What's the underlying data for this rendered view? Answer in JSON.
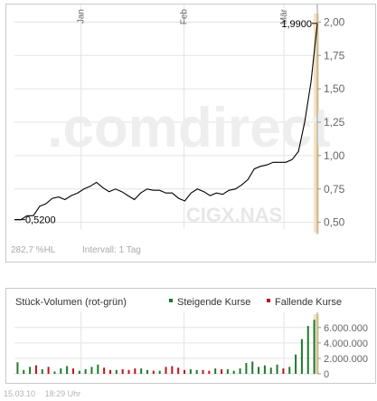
{
  "watermark": {
    "brand": ".comdirect",
    "symbol": "CIGX.NAS"
  },
  "price_footer": {
    "change": "282,7 %HL",
    "interval": "Intervall: 1 Tag"
  },
  "volume_header": {
    "title": "Stück-Volumen (rot-grün)",
    "rising": "Steigende Kurse",
    "falling": "Fallende Kurse"
  },
  "bottom": {
    "date": "15.03.10",
    "time": "18:29 Uhr"
  },
  "colors": {
    "line": "#000000",
    "grid": "#e3e3e3",
    "highlight": "#f8e2b8",
    "rising": "#1e7a2e",
    "falling": "#c0121b",
    "muted": "#aaaaaa"
  },
  "chart_data": [
    {
      "type": "line",
      "title": "",
      "x_labels": [
        "Jan",
        "Feb",
        "Mär"
      ],
      "ylim": [
        0.45,
        2.05
      ],
      "y_ticks": [
        "0,50",
        "0,75",
        "1,00",
        "1,25",
        "1,50",
        "1,75",
        "2,00"
      ],
      "y_tick_values": [
        0.5,
        0.75,
        1.0,
        1.25,
        1.5,
        1.75,
        2.0
      ],
      "annotations": [
        {
          "label": "0,5200",
          "index": 0,
          "value": 0.52
        },
        {
          "label": "1,9900",
          "index": 48,
          "value": 1.99
        }
      ],
      "series": [
        {
          "values": [
            0.52,
            0.52,
            0.55,
            0.55,
            0.62,
            0.64,
            0.68,
            0.69,
            0.67,
            0.7,
            0.72,
            0.75,
            0.77,
            0.8,
            0.76,
            0.73,
            0.75,
            0.73,
            0.7,
            0.67,
            0.72,
            0.75,
            0.74,
            0.74,
            0.72,
            0.72,
            0.68,
            0.66,
            0.72,
            0.75,
            0.73,
            0.7,
            0.72,
            0.71,
            0.74,
            0.75,
            0.78,
            0.82,
            0.9,
            0.92,
            0.93,
            0.95,
            0.95,
            0.95,
            0.97,
            1.03,
            1.25,
            1.55,
            1.99
          ]
        }
      ],
      "grid": true
    },
    {
      "type": "bar",
      "title": "Stück-Volumen (rot-grün)",
      "ylim": [
        0,
        7500000
      ],
      "y_ticks": [
        "0",
        "2.000.000",
        "4.000.000",
        "6.000.000"
      ],
      "y_tick_values": [
        0,
        2000000,
        4000000,
        6000000
      ],
      "series": [
        {
          "name": "Steigende Kurse",
          "values": [
            1500000,
            500000,
            900000,
            0,
            600000,
            0,
            300000,
            700000,
            1000000,
            0,
            400000,
            600000,
            900000,
            1200000,
            0,
            0,
            500000,
            0,
            0,
            0,
            700000,
            500000,
            0,
            400000,
            0,
            0,
            0,
            0,
            600000,
            500000,
            0,
            0,
            700000,
            0,
            600000,
            400000,
            700000,
            1400000,
            1600000,
            900000,
            1100000,
            800000,
            1200000,
            0,
            900000,
            2500000,
            4500000,
            6200000,
            7000000
          ]
        },
        {
          "name": "Fallende Kurse",
          "values": [
            0,
            0,
            0,
            1100000,
            0,
            900000,
            0,
            0,
            0,
            700000,
            0,
            0,
            0,
            0,
            800000,
            500000,
            0,
            600000,
            500000,
            700000,
            0,
            0,
            400000,
            0,
            900000,
            1000000,
            800000,
            500000,
            0,
            0,
            500000,
            400000,
            0,
            600000,
            0,
            0,
            0,
            0,
            0,
            0,
            0,
            0,
            0,
            700000,
            0,
            0,
            0,
            0,
            0
          ]
        }
      ]
    }
  ]
}
